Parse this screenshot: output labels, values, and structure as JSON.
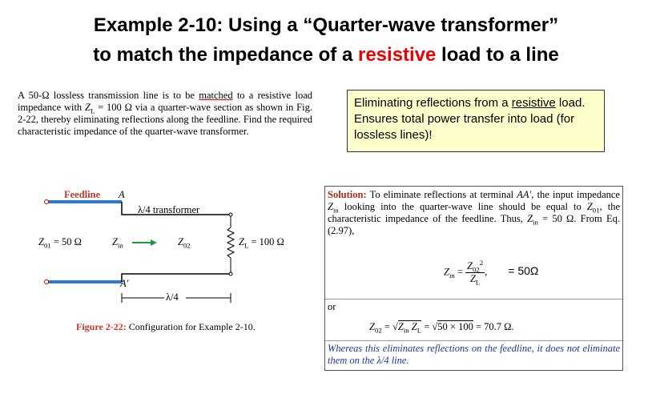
{
  "header": {
    "title_line1": "Example 2-10: Using a “Quarter-wave transformer”",
    "title_line2": [
      "to match the impedance of a ",
      "resistive",
      " load to a line"
    ]
  },
  "problem": [
    "A 50-Ω lossless transmission line is to be ",
    "matched",
    " to a resistive load impedance with ",
    "Z",
    "L",
    " = 100 Ω via a quarter-wave section as shown in Fig. 2-22, thereby eliminating reflections along the feedline. Find the required characteristic impedance of the quarter-wave transformer."
  ],
  "callout": [
    "Eliminating reflections from a ",
    "resistive",
    " load.  Ensures total power transfer into load (for lossless lines)!"
  ],
  "figure": {
    "feedline": "Feedline",
    "terminal_a": "A",
    "transformer": "λ/4 transformer",
    "z01": [
      "Z",
      "01",
      " = 50 Ω"
    ],
    "zin": [
      "Z",
      "in"
    ],
    "z02": [
      "Z",
      "02"
    ],
    "zl": [
      "Z",
      "L",
      " = 100 Ω"
    ],
    "terminal_a_prime": "A′",
    "length": "λ/4",
    "caption": [
      "Figure 2-22:",
      " Configuration for Example 2-10."
    ]
  },
  "solution": {
    "label": "Solution:",
    "text": [
      " To eliminate reflections at terminal ",
      "AA′",
      ", the input impedance ",
      "Z",
      "in",
      " looking into the quarter-wave line should be equal to ",
      "Z",
      "01",
      ", the characteristic impedance of the feedline. Thus, ",
      "Z",
      "in",
      " = 50 Ω. From Eq. (2.97),"
    ],
    "eq1": {
      "lhs": [
        "Z",
        "in",
        " ="
      ],
      "num": [
        "Z",
        "02",
        "2"
      ],
      "den": [
        "Z",
        "L"
      ],
      "comma": ",",
      "result": "= 50Ω"
    },
    "or": "or",
    "eq2": [
      "Z",
      "02",
      " = ",
      "√",
      "Z",
      "in",
      " Z",
      "L",
      " = ",
      "√",
      "50 × 100",
      " = 70.7 Ω."
    ],
    "note": "Whereas this eliminates reflections on the feedline, it does not eliminate them on the λ/4 line."
  }
}
